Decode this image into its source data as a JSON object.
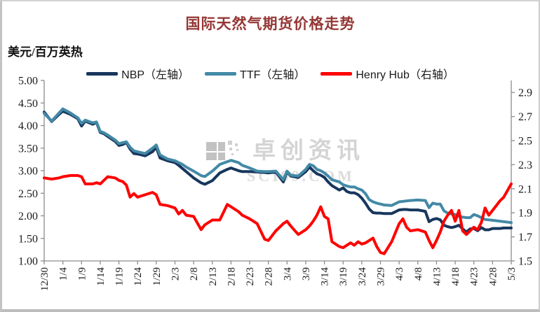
{
  "chart": {
    "title": "国际天然气期货价格走势",
    "y_axis_label": "美元/百万英热",
    "watermark": {
      "line1": "卓创资讯",
      "line2": "SCI99.COM"
    },
    "colors": {
      "title": "#953735",
      "axis_line": "#8c8c8c",
      "nbp": "#17365D",
      "ttf": "#4389A6",
      "henry_hub": "#FF0000",
      "watermark": "#cdcdcd"
    }
  },
  "chart_data": {
    "type": "line",
    "title": "国际天然气期货价格走势",
    "ylabel": "美元/百万英热",
    "grid": false,
    "legend_position": "top",
    "x_tick_labels": [
      "12/30",
      "1/4",
      "1/9",
      "1/14",
      "1/19",
      "1/24",
      "1/29",
      "2/3",
      "2/8",
      "2/13",
      "2/18",
      "2/23",
      "2/28",
      "3/4",
      "3/9",
      "3/14",
      "3/19",
      "3/24",
      "3/29",
      "4/3",
      "4/8",
      "4/13",
      "4/18",
      "4/23",
      "4/28",
      "5/3"
    ],
    "x_tick_days": [
      0,
      5,
      10,
      15,
      20,
      25,
      30,
      35,
      40,
      45,
      50,
      55,
      60,
      65,
      70,
      75,
      80,
      85,
      90,
      95,
      100,
      105,
      110,
      115,
      120,
      125
    ],
    "x_total_days": 125,
    "left_axis": {
      "min": 1.0,
      "max": 5.0,
      "tick_labels": [
        "5.00",
        "4.50",
        "4.00",
        "3.50",
        "3.00",
        "2.50",
        "2.00",
        "1.50",
        "1.00"
      ]
    },
    "right_axis": {
      "min": 1.5,
      "max": 3.0,
      "tick_labels": [
        "2.9",
        "2.7",
        "2.5",
        "2.3",
        "2.1",
        "1.9",
        "1.7",
        "1.5"
      ]
    },
    "x": {
      "dates": [
        "12/30",
        "1/1",
        "1/3",
        "1/4",
        "1/6",
        "1/8",
        "1/9",
        "1/10",
        "1/12",
        "1/13",
        "1/14",
        "1/15",
        "1/16",
        "1/18",
        "1/19",
        "1/20",
        "1/21",
        "1/22",
        "1/23",
        "1/24",
        "1/26",
        "1/28",
        "1/29",
        "1/30",
        "2/1",
        "2/3",
        "2/4",
        "2/5",
        "2/6",
        "2/8",
        "2/10",
        "2/11",
        "2/13",
        "2/15",
        "2/17",
        "2/18",
        "2/20",
        "2/21",
        "2/23",
        "2/25",
        "2/27",
        "2/28",
        "3/1",
        "3/3",
        "3/4",
        "3/5",
        "3/7",
        "3/9",
        "3/10",
        "3/11",
        "3/12",
        "3/13",
        "3/14",
        "3/15",
        "3/16",
        "3/18",
        "3/19",
        "3/20",
        "3/21",
        "3/22",
        "3/23",
        "3/24",
        "3/25",
        "3/26",
        "3/27",
        "3/28",
        "3/29",
        "3/30",
        "4/1",
        "4/3",
        "4/4",
        "4/5",
        "4/6",
        "4/8",
        "4/10",
        "4/11",
        "4/12",
        "4/13",
        "4/14",
        "4/15",
        "4/16",
        "4/17",
        "4/18",
        "4/19",
        "4/20",
        "4/21",
        "4/22",
        "4/23",
        "4/24",
        "4/25",
        "4/26",
        "4/27",
        "4/28",
        "4/30",
        "5/1",
        "5/3"
      ],
      "days": [
        0,
        2,
        4,
        5,
        7,
        9,
        10,
        11,
        13,
        14,
        15,
        16,
        17,
        19,
        20,
        21,
        22,
        23,
        24,
        25,
        27,
        29,
        30,
        31,
        33,
        35,
        36,
        37,
        38,
        40,
        42,
        43,
        45,
        47,
        49,
        50,
        52,
        53,
        55,
        57,
        59,
        60,
        62,
        64,
        65,
        66,
        68,
        70,
        71,
        72,
        73,
        74,
        75,
        76,
        77,
        79,
        80,
        81,
        82,
        83,
        84,
        85,
        86,
        87,
        88,
        89,
        90,
        91,
        93,
        95,
        96,
        97,
        98,
        100,
        102,
        103,
        104,
        105,
        106,
        107,
        108,
        109,
        110,
        111,
        112,
        113,
        114,
        115,
        116,
        117,
        118,
        119,
        120,
        122,
        123,
        125
      ]
    },
    "series": [
      {
        "name": "NBP（左轴）",
        "slug": "nbp",
        "axis": "left",
        "color": "#17365D",
        "values": [
          4.3,
          4.09,
          4.25,
          4.32,
          4.25,
          4.15,
          3.99,
          4.1,
          4.03,
          4.07,
          3.85,
          3.82,
          3.76,
          3.65,
          3.56,
          3.58,
          3.62,
          3.48,
          3.38,
          3.37,
          3.33,
          3.42,
          3.52,
          3.28,
          3.22,
          3.18,
          3.12,
          3.05,
          2.98,
          2.84,
          2.73,
          2.7,
          2.78,
          2.95,
          3.03,
          3.06,
          3.0,
          2.98,
          2.98,
          2.97,
          2.96,
          2.95,
          2.97,
          2.75,
          2.98,
          2.88,
          2.85,
          2.98,
          3.08,
          3.0,
          2.93,
          2.9,
          2.85,
          2.75,
          2.67,
          2.57,
          2.62,
          2.54,
          2.51,
          2.51,
          2.47,
          2.39,
          2.28,
          2.15,
          2.07,
          2.06,
          2.06,
          2.05,
          2.05,
          2.13,
          2.14,
          2.14,
          2.13,
          2.13,
          2.1,
          1.87,
          1.92,
          1.94,
          1.91,
          1.79,
          1.76,
          1.74,
          1.76,
          1.79,
          1.71,
          1.64,
          1.71,
          1.72,
          1.67,
          1.74,
          1.69,
          1.69,
          1.72,
          1.72,
          1.73,
          1.73
        ]
      },
      {
        "name": "TTF（左轴）",
        "slug": "ttf",
        "axis": "left",
        "color": "#4389A6",
        "values": [
          4.27,
          4.1,
          4.28,
          4.37,
          4.28,
          4.17,
          4.05,
          4.12,
          4.06,
          4.08,
          3.87,
          3.84,
          3.79,
          3.68,
          3.6,
          3.62,
          3.64,
          3.52,
          3.44,
          3.42,
          3.38,
          3.5,
          3.57,
          3.35,
          3.26,
          3.22,
          3.18,
          3.14,
          3.08,
          2.99,
          2.89,
          2.87,
          2.99,
          3.14,
          3.2,
          3.23,
          3.18,
          3.12,
          3.06,
          2.99,
          2.98,
          2.98,
          2.99,
          2.8,
          2.99,
          2.9,
          2.88,
          3.03,
          3.14,
          3.11,
          3.03,
          3.0,
          2.95,
          2.88,
          2.8,
          2.75,
          2.69,
          2.66,
          2.64,
          2.64,
          2.6,
          2.57,
          2.49,
          2.36,
          2.31,
          2.28,
          2.26,
          2.24,
          2.23,
          2.31,
          2.32,
          2.33,
          2.34,
          2.35,
          2.34,
          2.18,
          2.28,
          2.26,
          2.26,
          2.11,
          2.06,
          2.04,
          2.03,
          1.99,
          1.97,
          1.96,
          1.96,
          2.03,
          2.0,
          1.96,
          1.92,
          1.91,
          1.9,
          1.88,
          1.87,
          1.85
        ]
      },
      {
        "name": "Henry Hub（右轴）",
        "slug": "henry-hub",
        "axis": "right",
        "color": "#FF0000",
        "values": [
          2.19,
          2.18,
          2.19,
          2.2,
          2.21,
          2.21,
          2.2,
          2.14,
          2.14,
          2.15,
          2.14,
          2.17,
          2.2,
          2.19,
          2.17,
          2.16,
          2.13,
          2.03,
          2.06,
          2.03,
          2.05,
          2.07,
          2.05,
          1.97,
          1.96,
          1.94,
          1.89,
          1.92,
          1.88,
          1.87,
          1.76,
          1.8,
          1.84,
          1.84,
          1.97,
          1.95,
          1.91,
          1.88,
          1.85,
          1.81,
          1.68,
          1.67,
          1.75,
          1.81,
          1.83,
          1.79,
          1.72,
          1.76,
          1.79,
          1.83,
          1.88,
          1.95,
          1.87,
          1.85,
          1.66,
          1.62,
          1.61,
          1.63,
          1.65,
          1.63,
          1.66,
          1.64,
          1.65,
          1.67,
          1.69,
          1.62,
          1.57,
          1.56,
          1.66,
          1.81,
          1.85,
          1.78,
          1.75,
          1.76,
          1.74,
          1.67,
          1.61,
          1.67,
          1.74,
          1.83,
          1.88,
          1.92,
          1.83,
          1.92,
          1.75,
          1.72,
          1.75,
          1.78,
          1.76,
          1.82,
          1.94,
          1.88,
          1.92,
          2.0,
          2.03,
          2.14
        ]
      }
    ]
  }
}
